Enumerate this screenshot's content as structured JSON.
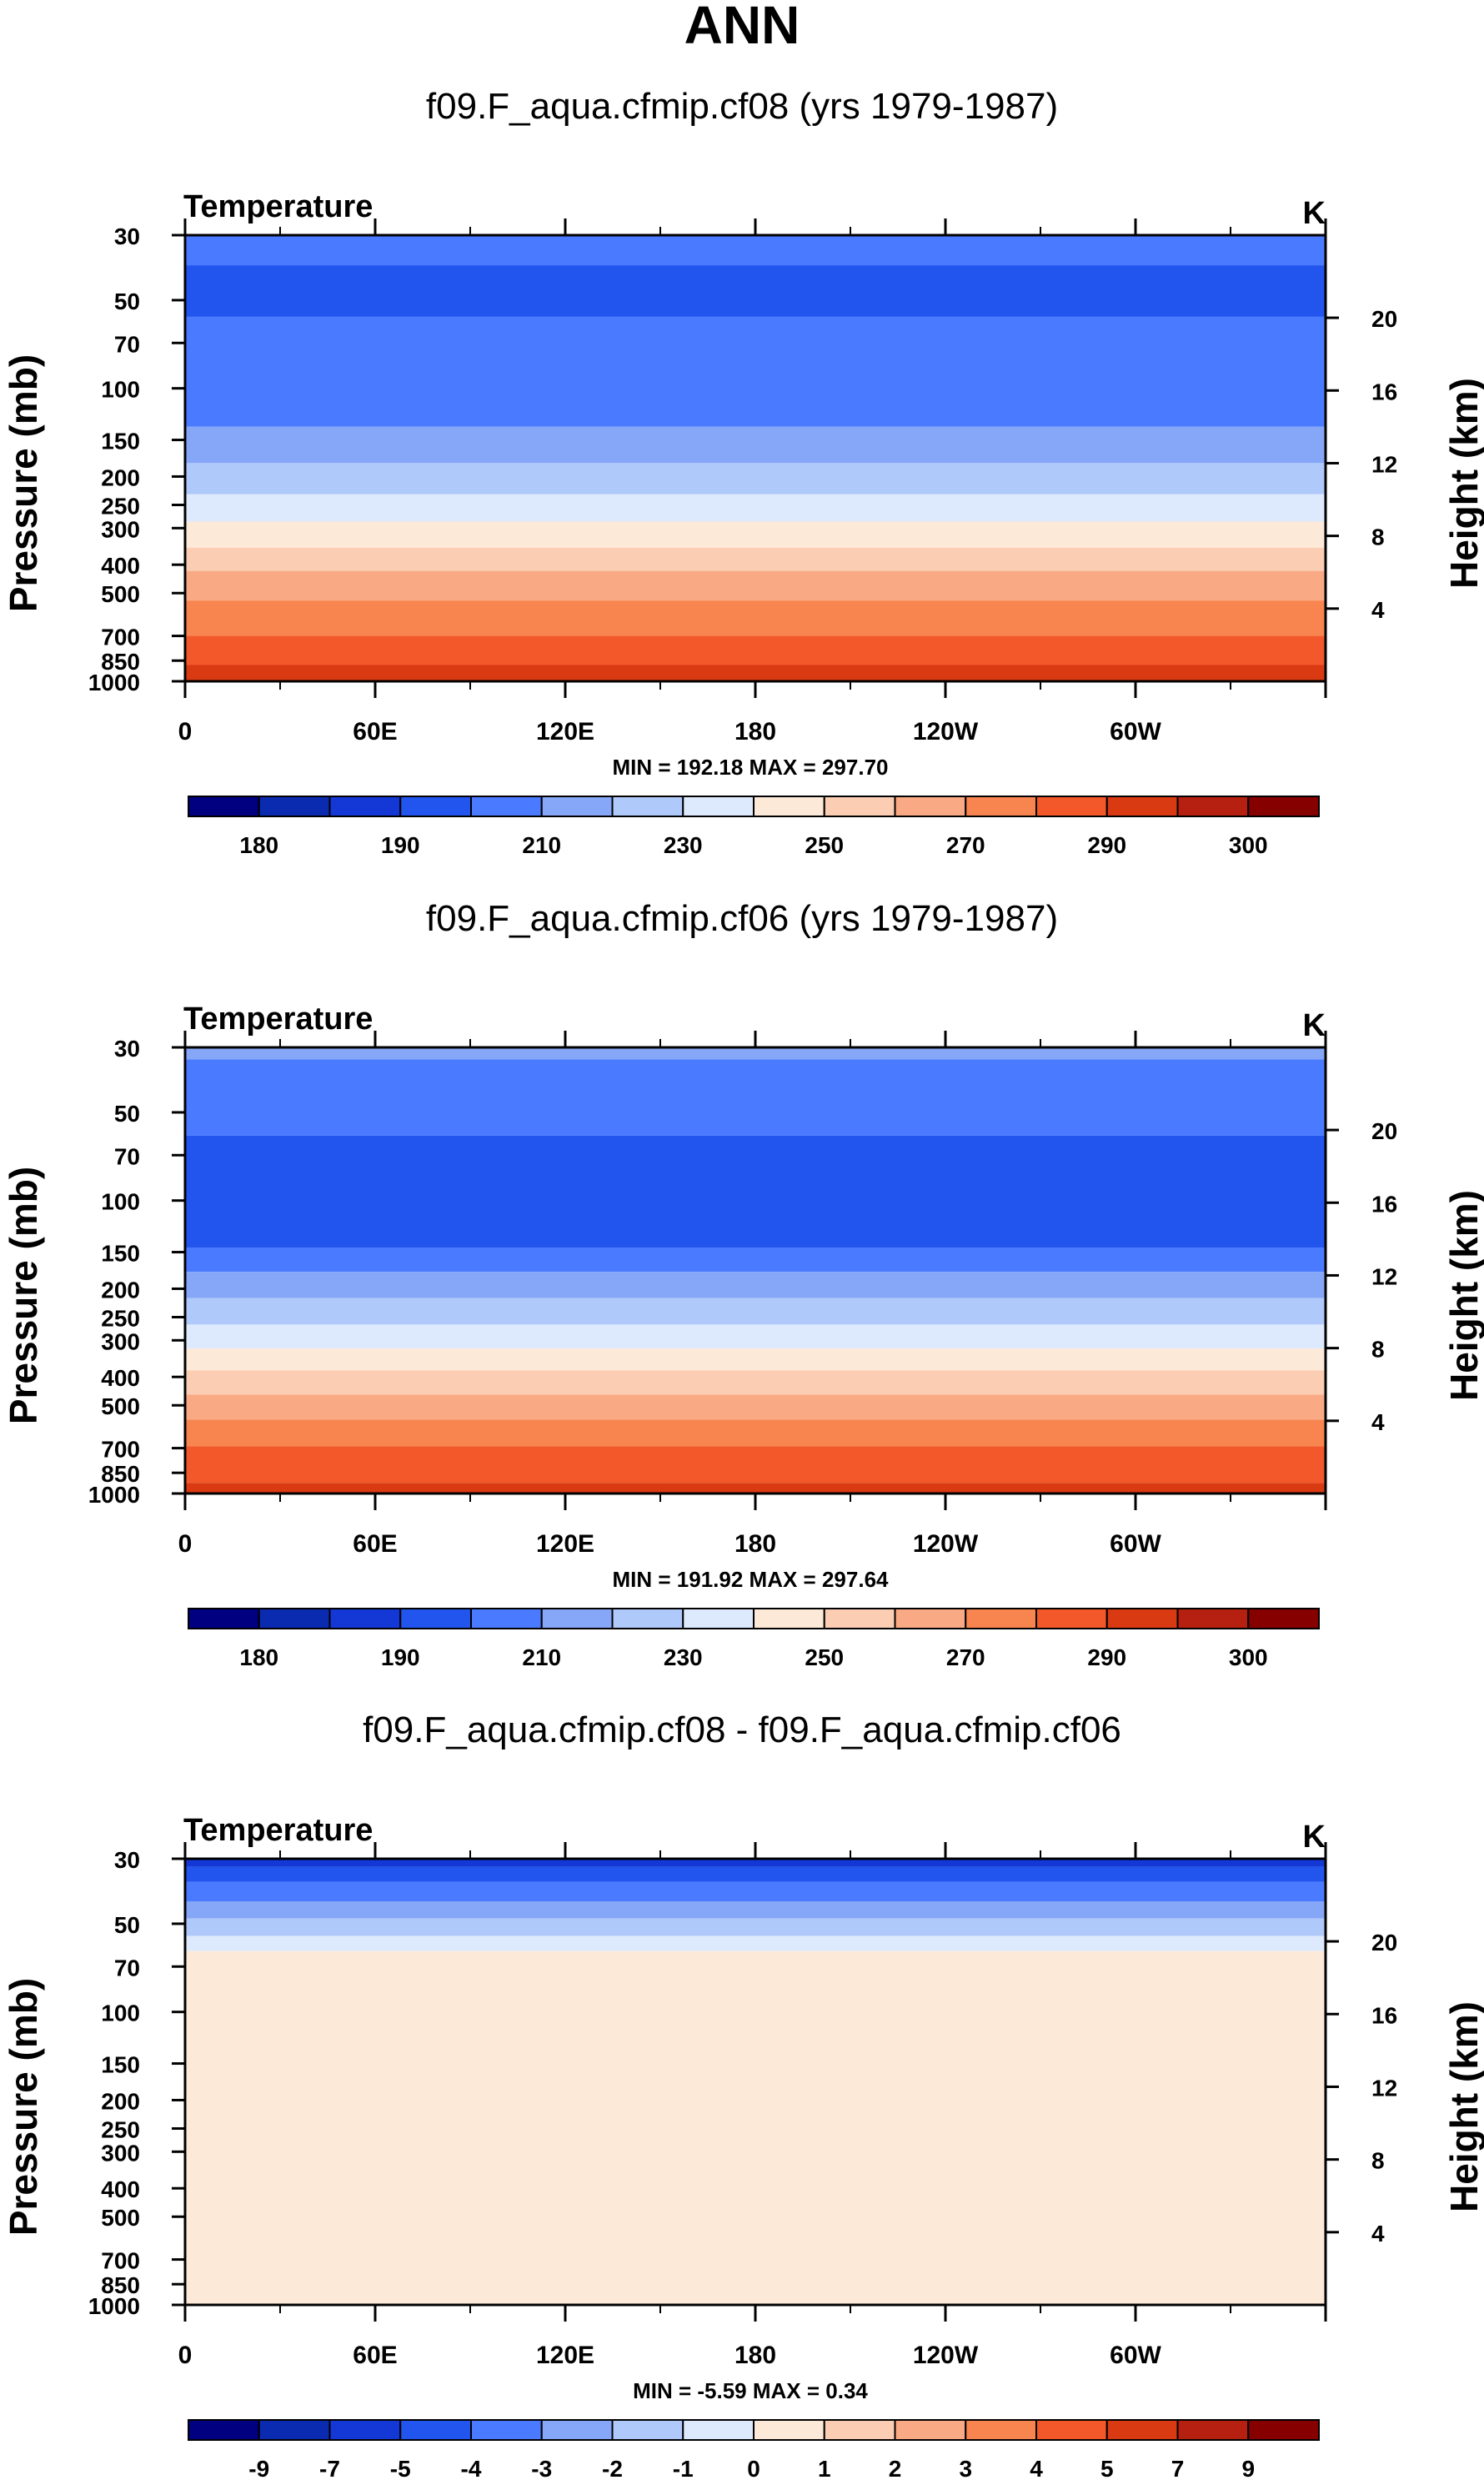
{
  "figure_title": "ANN",
  "colors": {
    "temperature": [
      "#000080",
      "#0a2ab0",
      "#1438d6",
      "#2255ee",
      "#4a7aff",
      "#86a7f7",
      "#b0c9fb",
      "#dde9fc",
      "#fde9d8",
      "#fbcdb2",
      "#f9aa84",
      "#f8854f",
      "#f2582a",
      "#da3a12",
      "#b52010",
      "#870000"
    ],
    "difference": [
      "#000080",
      "#0a2ab0",
      "#1438d6",
      "#2255ee",
      "#4a7aff",
      "#86a7f7",
      "#b0c9fb",
      "#dde9fc",
      "#fde9d8",
      "#fbcdb2",
      "#f9aa84",
      "#f8854f",
      "#f2582a",
      "#da3a12",
      "#b52010",
      "#870000"
    ]
  },
  "chart_data": [
    {
      "type": "heatmap",
      "title": "f09.F_aqua.cfmip.cf08 (yrs 1979-1987)",
      "variable": "Temperature",
      "units": "K",
      "ylabel": "Pressure (mb)",
      "ylabel_right": "Height (km)",
      "x_ticks": [
        "0",
        "60E",
        "120E",
        "180",
        "120W",
        "60W"
      ],
      "y_ticks": [
        "30",
        "50",
        "70",
        "100",
        "150",
        "200",
        "250",
        "300",
        "400",
        "500",
        "700",
        "850",
        "1000"
      ],
      "height_ticks": [
        "20",
        "16",
        "12",
        "8",
        "4"
      ],
      "stats": "MIN = 192.18  MAX = 297.70",
      "colorbar_labels": [
        "180",
        "190",
        "210",
        "230",
        "250",
        "270",
        "290",
        "300"
      ],
      "colorbar_levels": [
        180,
        185,
        190,
        200,
        210,
        220,
        230,
        240,
        250,
        260,
        270,
        280,
        290,
        295,
        300
      ],
      "ylim": [
        1000,
        30
      ],
      "pressure_levels": [
        30,
        38,
        57,
        135,
        180,
        230,
        285,
        350,
        420,
        530,
        700,
        880,
        1000
      ],
      "band_values": [
        204,
        198,
        204,
        212,
        222,
        232,
        243,
        253,
        262,
        272,
        282,
        292
      ]
    },
    {
      "type": "heatmap",
      "title": "f09.F_aqua.cfmip.cf06 (yrs 1979-1987)",
      "variable": "Temperature",
      "units": "K",
      "ylabel": "Pressure (mb)",
      "ylabel_right": "Height (km)",
      "x_ticks": [
        "0",
        "60E",
        "120E",
        "180",
        "120W",
        "60W"
      ],
      "y_ticks": [
        "30",
        "50",
        "70",
        "100",
        "150",
        "200",
        "250",
        "300",
        "400",
        "500",
        "700",
        "850",
        "1000"
      ],
      "height_ticks": [
        "20",
        "16",
        "12",
        "8",
        "4"
      ],
      "stats": "MIN = 191.92  MAX = 297.64",
      "colorbar_labels": [
        "180",
        "190",
        "210",
        "230",
        "250",
        "270",
        "290",
        "300"
      ],
      "colorbar_levels": [
        180,
        185,
        190,
        200,
        210,
        220,
        230,
        240,
        250,
        260,
        270,
        280,
        290,
        295,
        300
      ],
      "ylim": [
        1000,
        30
      ],
      "pressure_levels": [
        30,
        33,
        60,
        145,
        175,
        215,
        265,
        320,
        380,
        460,
        560,
        690,
        920,
        1000
      ],
      "band_values": [
        215,
        204,
        198,
        204,
        212,
        222,
        232,
        243,
        253,
        262,
        272,
        282,
        292
      ]
    },
    {
      "type": "heatmap",
      "title": "f09.F_aqua.cfmip.cf08 - f09.F_aqua.cfmip.cf06",
      "variable": "Temperature",
      "units": "K",
      "ylabel": "Pressure (mb)",
      "ylabel_right": "Height (km)",
      "x_ticks": [
        "0",
        "60E",
        "120E",
        "180",
        "120W",
        "60W"
      ],
      "y_ticks": [
        "30",
        "50",
        "70",
        "100",
        "150",
        "200",
        "250",
        "300",
        "400",
        "500",
        "700",
        "850",
        "1000"
      ],
      "height_ticks": [
        "20",
        "16",
        "12",
        "8",
        "4"
      ],
      "stats": "MIN =  -5.59  MAX =   0.34",
      "colorbar_labels": [
        "-9",
        "-7",
        "-5",
        "-4",
        "-3",
        "-2",
        "-1",
        "0",
        "1",
        "2",
        "3",
        "4",
        "5",
        "7",
        "9"
      ],
      "colorbar_levels": [
        -9,
        -7,
        -5,
        -4,
        -3,
        -2,
        -1,
        0,
        1,
        2,
        3,
        4,
        5,
        7,
        9
      ],
      "ylim": [
        1000,
        30
      ],
      "pressure_levels": [
        30,
        32,
        36,
        42,
        48,
        55,
        62,
        72,
        1000
      ],
      "band_values": [
        -5.5,
        -4.5,
        -3.5,
        -2.5,
        -1.5,
        -0.5,
        0.5,
        0.5
      ]
    }
  ]
}
